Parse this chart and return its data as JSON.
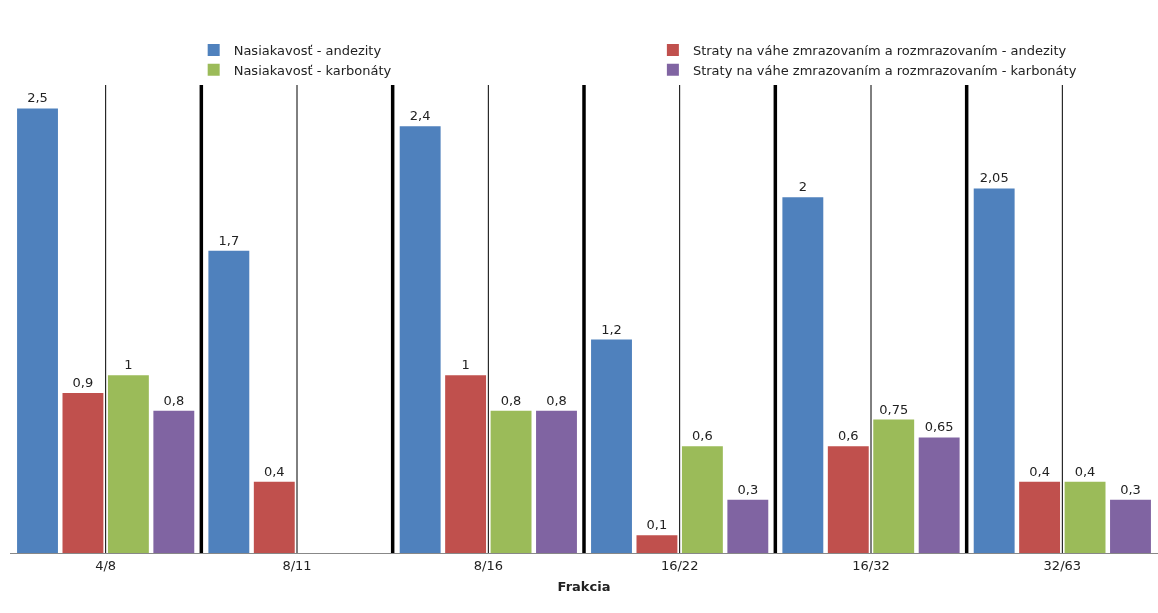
{
  "chart_data": {
    "type": "bar",
    "xlabel": "Frakcia",
    "categories": [
      "4/8",
      "8/11",
      "8/16",
      "16/22",
      "16/32",
      "32/63"
    ],
    "series": [
      {
        "name": "Nasiakavosť - andezity",
        "color": "#4f81bd",
        "values": [
          2.5,
          1.7,
          2.4,
          1.2,
          2,
          2.05
        ],
        "value_labels": [
          "2,5",
          "1,7",
          "2,4",
          "1,2",
          "2",
          "2,05"
        ]
      },
      {
        "name": "Straty na váhe zmrazovaním a rozmrazovaním - andezity",
        "color": "#c0504d",
        "values": [
          0.9,
          0.4,
          1,
          0.1,
          0.6,
          0.4
        ],
        "value_labels": [
          "0,9",
          "0,4",
          "1",
          "0,1",
          "0,6",
          "0,4"
        ]
      },
      {
        "name": "Nasiakavosť - karbonáty",
        "color": "#9bbb59",
        "values": [
          1,
          null,
          0.8,
          0.6,
          0.75,
          0.4
        ],
        "value_labels": [
          "1",
          null,
          "0,8",
          "0,6",
          "0,75",
          "0,4"
        ]
      },
      {
        "name": "Straty na váhe zmrazovaním a rozmrazovaním - karbonáty",
        "color": "#8064a2",
        "values": [
          0.8,
          null,
          0.8,
          0.3,
          0.65,
          0.3
        ],
        "value_labels": [
          "0,8",
          null,
          "0,8",
          "0,3",
          "0,65",
          "0,3"
        ]
      }
    ],
    "grid": "x",
    "legend": "top"
  }
}
